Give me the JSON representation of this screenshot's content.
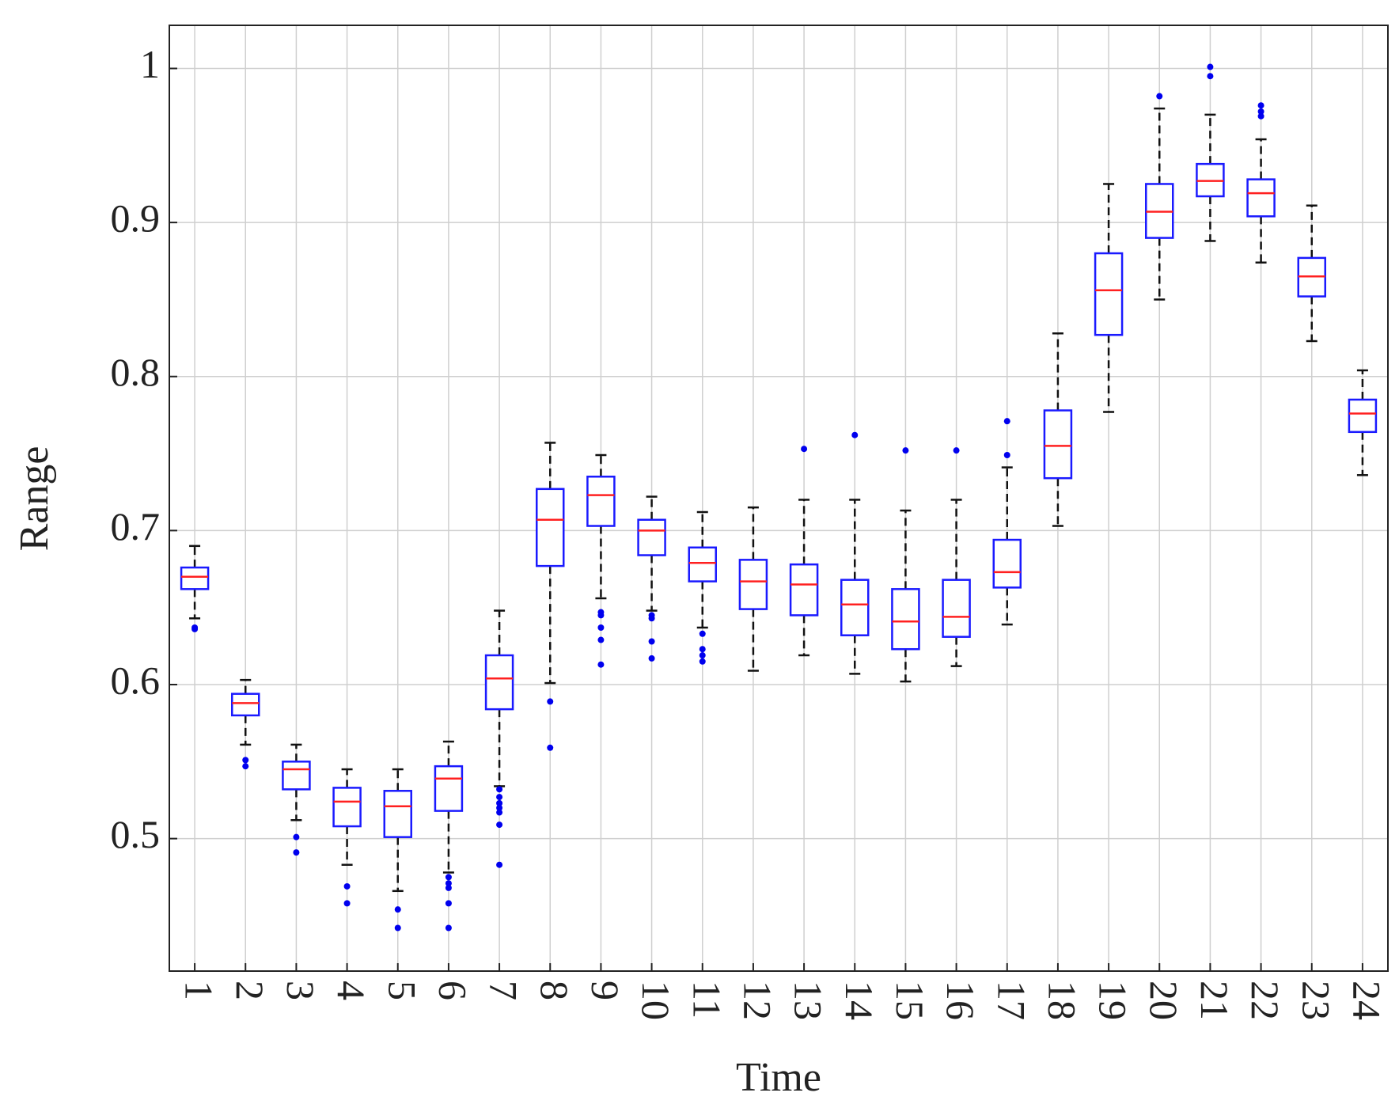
{
  "chart_data": {
    "type": "box",
    "x_label": "Time",
    "y_label": "Range",
    "categories": [
      "1",
      "2",
      "3",
      "4",
      "5",
      "6",
      "7",
      "8",
      "9",
      "10",
      "11",
      "12",
      "13",
      "14",
      "15",
      "16",
      "17",
      "18",
      "19",
      "20",
      "21",
      "22",
      "23",
      "24"
    ],
    "ylim": [
      0.414,
      1.028
    ],
    "yticks": [
      0.5,
      0.6,
      0.7,
      0.8,
      0.9,
      1
    ],
    "grid": true,
    "box_color": "#1a1aff",
    "median_color": "#ff2020",
    "whisker_color": "#111111",
    "outlier_color": "#0000ee",
    "boxes": [
      {
        "whisker_low": 0.643,
        "q1": 0.662,
        "median": 0.67,
        "q3": 0.676,
        "whisker_high": 0.69,
        "outliers": [
          0.637,
          0.636
        ]
      },
      {
        "whisker_low": 0.561,
        "q1": 0.58,
        "median": 0.588,
        "q3": 0.594,
        "whisker_high": 0.603,
        "outliers": [
          0.551,
          0.547
        ]
      },
      {
        "whisker_low": 0.512,
        "q1": 0.532,
        "median": 0.545,
        "q3": 0.55,
        "whisker_high": 0.561,
        "outliers": [
          0.501,
          0.491
        ]
      },
      {
        "whisker_low": 0.483,
        "q1": 0.508,
        "median": 0.524,
        "q3": 0.533,
        "whisker_high": 0.545,
        "outliers": [
          0.469,
          0.458
        ]
      },
      {
        "whisker_low": 0.466,
        "q1": 0.501,
        "median": 0.521,
        "q3": 0.531,
        "whisker_high": 0.545,
        "outliers": [
          0.454,
          0.442
        ]
      },
      {
        "whisker_low": 0.478,
        "q1": 0.518,
        "median": 0.539,
        "q3": 0.547,
        "whisker_high": 0.563,
        "outliers": [
          0.475,
          0.471,
          0.468,
          0.458,
          0.442
        ]
      },
      {
        "whisker_low": 0.534,
        "q1": 0.584,
        "median": 0.604,
        "q3": 0.619,
        "whisker_high": 0.648,
        "outliers": [
          0.532,
          0.527,
          0.523,
          0.52,
          0.517,
          0.509,
          0.483
        ]
      },
      {
        "whisker_low": 0.601,
        "q1": 0.677,
        "median": 0.707,
        "q3": 0.727,
        "whisker_high": 0.757,
        "outliers": [
          0.589,
          0.559
        ]
      },
      {
        "whisker_low": 0.656,
        "q1": 0.703,
        "median": 0.723,
        "q3": 0.735,
        "whisker_high": 0.749,
        "outliers": [
          0.647,
          0.645,
          0.637,
          0.629,
          0.613
        ]
      },
      {
        "whisker_low": 0.648,
        "q1": 0.684,
        "median": 0.7,
        "q3": 0.707,
        "whisker_high": 0.722,
        "outliers": [
          0.645,
          0.643,
          0.628,
          0.617
        ]
      },
      {
        "whisker_low": 0.637,
        "q1": 0.667,
        "median": 0.679,
        "q3": 0.689,
        "whisker_high": 0.712,
        "outliers": [
          0.633,
          0.623,
          0.619,
          0.615
        ]
      },
      {
        "whisker_low": 0.609,
        "q1": 0.649,
        "median": 0.667,
        "q3": 0.681,
        "whisker_high": 0.715
      },
      {
        "whisker_low": 0.619,
        "q1": 0.645,
        "median": 0.665,
        "q3": 0.678,
        "whisker_high": 0.72,
        "outliers": [
          0.753
        ]
      },
      {
        "whisker_low": 0.607,
        "q1": 0.632,
        "median": 0.652,
        "q3": 0.668,
        "whisker_high": 0.72,
        "outliers": [
          0.762
        ]
      },
      {
        "whisker_low": 0.602,
        "q1": 0.623,
        "median": 0.641,
        "q3": 0.662,
        "whisker_high": 0.713,
        "outliers": [
          0.752
        ]
      },
      {
        "whisker_low": 0.612,
        "q1": 0.631,
        "median": 0.644,
        "q3": 0.668,
        "whisker_high": 0.72,
        "outliers": [
          0.752
        ]
      },
      {
        "whisker_low": 0.639,
        "q1": 0.663,
        "median": 0.673,
        "q3": 0.694,
        "whisker_high": 0.741,
        "outliers": [
          0.771,
          0.749
        ]
      },
      {
        "whisker_low": 0.703,
        "q1": 0.734,
        "median": 0.755,
        "q3": 0.778,
        "whisker_high": 0.828
      },
      {
        "whisker_low": 0.777,
        "q1": 0.827,
        "median": 0.856,
        "q3": 0.88,
        "whisker_high": 0.925
      },
      {
        "whisker_low": 0.85,
        "q1": 0.89,
        "median": 0.907,
        "q3": 0.925,
        "whisker_high": 0.974,
        "outliers": [
          0.982
        ]
      },
      {
        "whisker_low": 0.888,
        "q1": 0.917,
        "median": 0.927,
        "q3": 0.938,
        "whisker_high": 0.97,
        "outliers": [
          1.001,
          0.995
        ]
      },
      {
        "whisker_low": 0.874,
        "q1": 0.904,
        "median": 0.919,
        "q3": 0.928,
        "whisker_high": 0.954,
        "outliers": [
          0.976,
          0.972,
          0.969
        ]
      },
      {
        "whisker_low": 0.823,
        "q1": 0.852,
        "median": 0.865,
        "q3": 0.877,
        "whisker_high": 0.911
      },
      {
        "whisker_low": 0.736,
        "q1": 0.764,
        "median": 0.776,
        "q3": 0.785,
        "whisker_high": 0.804
      }
    ]
  }
}
